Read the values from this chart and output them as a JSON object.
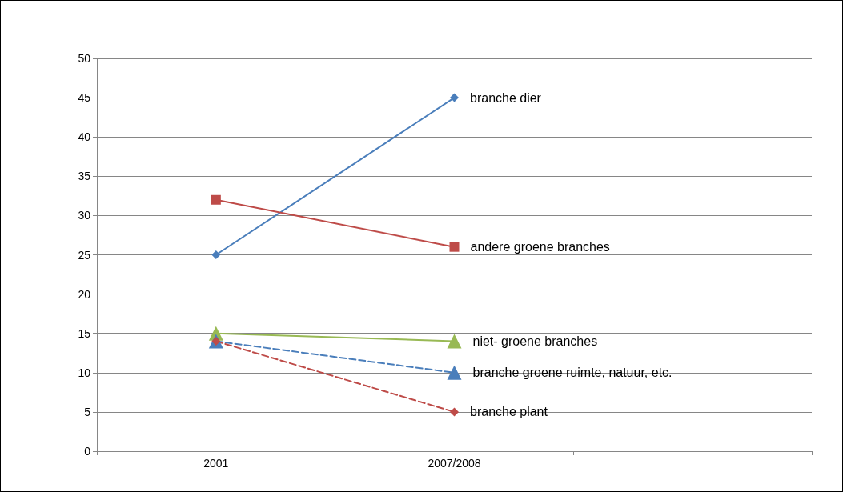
{
  "chart_data": {
    "type": "line",
    "categories": [
      "2001",
      "2007/2008",
      null
    ],
    "ylim": [
      0,
      50
    ],
    "yticks": [
      0,
      5,
      10,
      15,
      20,
      25,
      30,
      35,
      40,
      45,
      50
    ],
    "grid": "y",
    "legend": false,
    "series": [
      {
        "name": "branche dier",
        "color": "#4a7ebb",
        "values": [
          25,
          45,
          null
        ],
        "marker": "diamond",
        "line_style": "solid"
      },
      {
        "name": "andere groene branches",
        "color": "#be4b48",
        "values": [
          32,
          26,
          null
        ],
        "marker": "square",
        "line_style": "solid"
      },
      {
        "name": "niet- groene branches",
        "color": "#98b954",
        "values": [
          15,
          14,
          null
        ],
        "marker": "triangle",
        "line_style": "solid"
      },
      {
        "name": "branche groene ruimte, natuur, etc.",
        "color": "#4a7ebb",
        "values": [
          14,
          10,
          null
        ],
        "marker": "triangle",
        "line_style": "dashed"
      },
      {
        "name": "branche plant",
        "color": "#be4b48",
        "values": [
          14,
          5,
          null
        ],
        "marker": "diamond",
        "line_style": "dashed"
      }
    ]
  }
}
